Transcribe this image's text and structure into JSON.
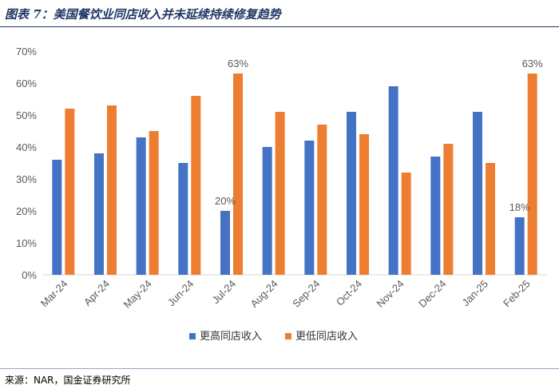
{
  "header": {
    "title": "图表 7：美国餐饮业同店收入并未延续持续修复趋势"
  },
  "footer": {
    "source": "来源：NAR，国金证券研究所"
  },
  "colors": {
    "series1": "#4472c4",
    "series2": "#ed7d31",
    "title": "#1f3864"
  },
  "chart_data": {
    "type": "bar",
    "categories": [
      "Mar-24",
      "Apr-24",
      "May-24",
      "Jun-24",
      "Jul-24",
      "Aug-24",
      "Sep-24",
      "Oct-24",
      "Nov-24",
      "Dec-24",
      "Jan-25",
      "Feb-25"
    ],
    "series": [
      {
        "name": "更高同店收入",
        "values": [
          36,
          38,
          43,
          35,
          20,
          40,
          42,
          51,
          59,
          37,
          51,
          18
        ]
      },
      {
        "name": "更低同店收入",
        "values": [
          52,
          53,
          45,
          56,
          63,
          51,
          47,
          44,
          32,
          41,
          35,
          63
        ]
      }
    ],
    "data_labels": [
      {
        "series": 0,
        "index": 4,
        "text": "20%"
      },
      {
        "series": 1,
        "index": 4,
        "text": "63%"
      },
      {
        "series": 0,
        "index": 11,
        "text": "18%"
      },
      {
        "series": 1,
        "index": 11,
        "text": "63%"
      }
    ],
    "yticks": [
      "0%",
      "10%",
      "20%",
      "30%",
      "40%",
      "50%",
      "60%",
      "70%"
    ],
    "ylim": [
      0,
      70
    ],
    "grid": false,
    "legend_position": "bottom"
  }
}
